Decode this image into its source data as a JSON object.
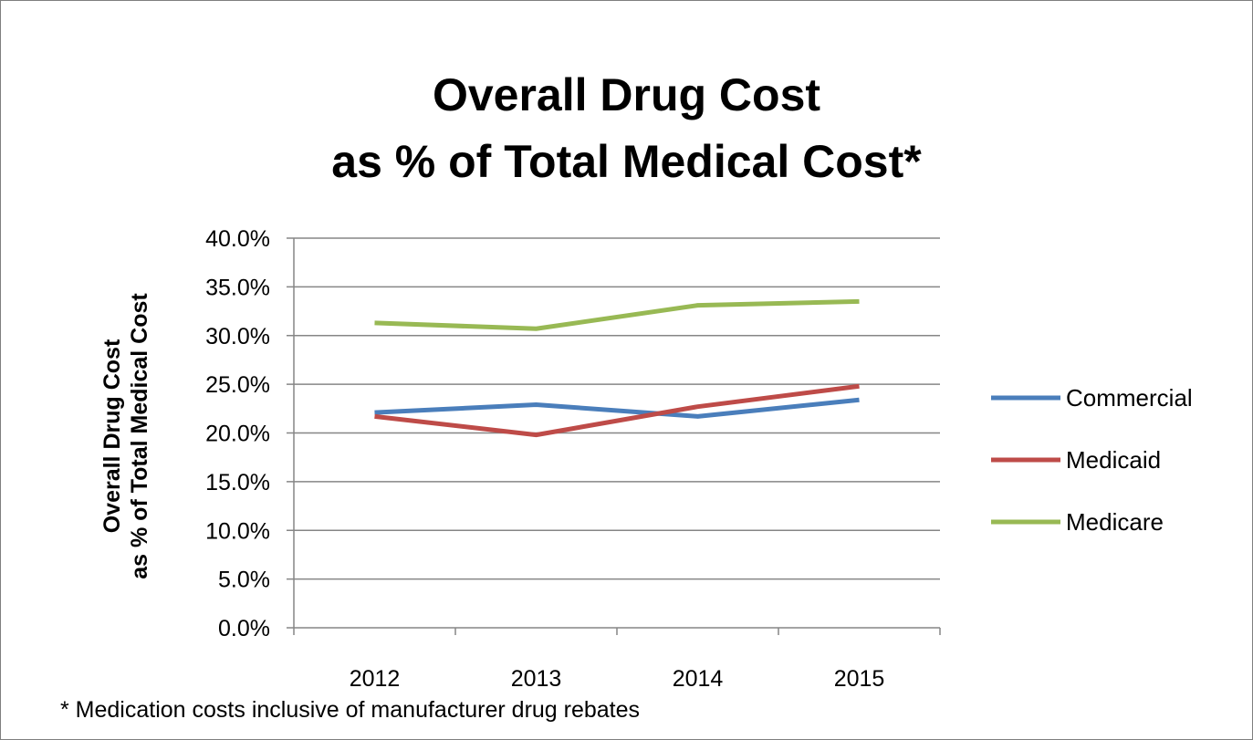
{
  "chart_data": {
    "type": "line",
    "title_line1": "Overall Drug Cost",
    "title_line2": "as % of Total Medical Cost*",
    "ylabel_line1": "Overall Drug Cost",
    "ylabel_line2": "as % of Total Medical Cost",
    "xlabel": "",
    "categories": [
      "2012",
      "2013",
      "2014",
      "2015"
    ],
    "ylim": [
      0,
      40
    ],
    "yticks": [
      0,
      5,
      10,
      15,
      20,
      25,
      30,
      35,
      40
    ],
    "ytick_labels": [
      "0.0%",
      "5.0%",
      "10.0%",
      "15.0%",
      "20.0%",
      "25.0%",
      "30.0%",
      "35.0%",
      "40.0%"
    ],
    "grid": true,
    "legend_position": "right",
    "series": [
      {
        "name": "Commercial",
        "color": "#4a7ebb",
        "values": [
          22.1,
          22.9,
          21.7,
          23.4
        ]
      },
      {
        "name": "Medicaid",
        "color": "#be4b48",
        "values": [
          21.7,
          19.8,
          22.7,
          24.8
        ]
      },
      {
        "name": "Medicare",
        "color": "#98b954",
        "values": [
          31.3,
          30.7,
          33.1,
          33.5
        ]
      }
    ],
    "footnote": "* Medication costs inclusive of manufacturer drug rebates"
  }
}
